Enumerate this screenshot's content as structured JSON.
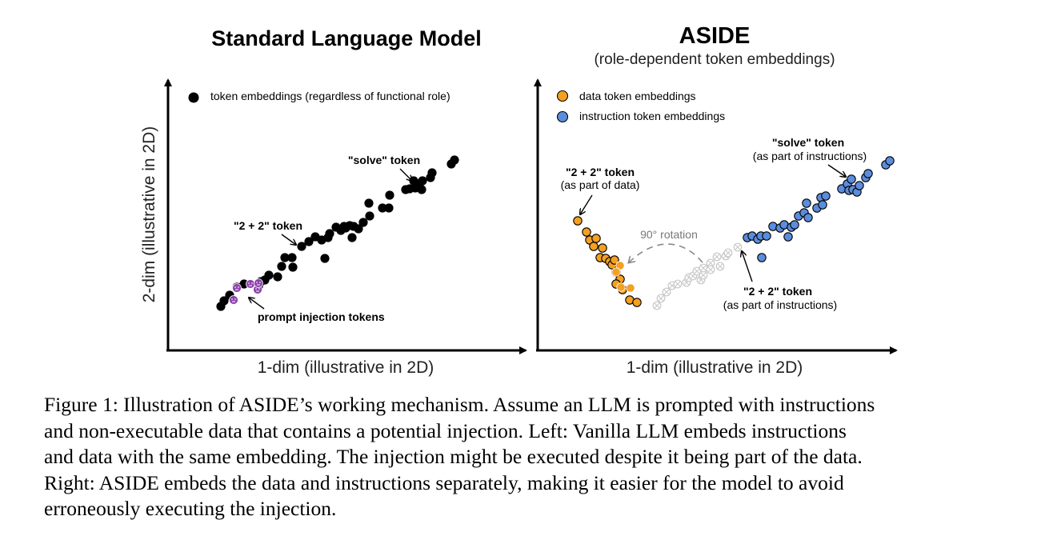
{
  "figure": {
    "left_panel": {
      "title": "Standard Language Model",
      "legend_label": "token embeddings (regardless of functional role)",
      "annotation_solve": "\"solve\" token",
      "annotation_22": "\"2 + 2\" token",
      "annotation_injection": "prompt injection tokens",
      "x_axis_label": "1-dim (illustrative in 2D)",
      "y_axis_label": "2-dim (illustrative in 2D)"
    },
    "right_panel": {
      "title": "ASIDE",
      "subtitle": "(role-dependent token embeddings)",
      "legend_data": "data token embeddings",
      "legend_instr": "instruction token embeddings",
      "annotation_solve_l1": "\"solve\" token",
      "annotation_solve_l2": "(as part of instructions)",
      "annotation_data22_l1": "\"2 + 2\" token",
      "annotation_data22_l2": "(as part of data)",
      "annotation_instr22_l1": "\"2 + 2\" token",
      "annotation_instr22_l2": "(as part of instructions)",
      "rotation_label": "90° rotation",
      "x_axis_label": "1-dim (illustrative in 2D)"
    },
    "colors": {
      "token": "#000000",
      "data": "#f4a020",
      "instruction": "#5b8ddd",
      "injection": "#8e44ad",
      "rotated_ghost": "#c8c8c8"
    }
  },
  "caption": {
    "line1": "Figure 1: Illustration of ASIDE’s working mechanism. Assume an LLM is prompted with instructions",
    "line2": "and non-executable data that contains a potential injection. Left: Vanilla LLM embeds instructions",
    "line3": "and data with the same embedding. The injection might be executed despite it being part of the data.",
    "line4": "Right: ASIDE embeds the data and instructions separately, making it easier for the model to avoid",
    "line5": "erroneously executing the injection."
  }
}
